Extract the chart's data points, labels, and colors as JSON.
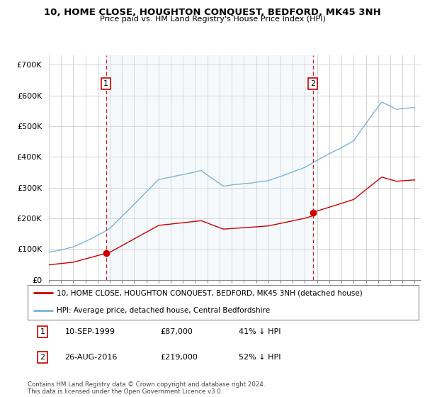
{
  "title": "10, HOME CLOSE, HOUGHTON CONQUEST, BEDFORD, MK45 3NH",
  "subtitle": "Price paid vs. HM Land Registry's House Price Index (HPI)",
  "ylabel_ticks": [
    "£0",
    "£100K",
    "£200K",
    "£300K",
    "£400K",
    "£500K",
    "£600K",
    "£700K"
  ],
  "ytick_values": [
    0,
    100000,
    200000,
    300000,
    400000,
    500000,
    600000,
    700000
  ],
  "ylim": [
    0,
    730000
  ],
  "xlim_start": 1995.0,
  "xlim_end": 2025.5,
  "sale1_x": 1999.69,
  "sale1_y": 87000,
  "sale1_label": "1",
  "sale2_x": 2016.65,
  "sale2_y": 219000,
  "sale2_label": "2",
  "legend_line1": "10, HOME CLOSE, HOUGHTON CONQUEST, BEDFORD, MK45 3NH (detached house)",
  "legend_line2": "HPI: Average price, detached house, Central Bedfordshire",
  "annotation1_date": "10-SEP-1999",
  "annotation1_price": "£87,000",
  "annotation1_hpi": "41% ↓ HPI",
  "annotation2_date": "26-AUG-2016",
  "annotation2_price": "£219,000",
  "annotation2_hpi": "52% ↓ HPI",
  "footer": "Contains HM Land Registry data © Crown copyright and database right 2024.\nThis data is licensed under the Open Government Licence v3.0.",
  "hpi_color": "#7ab4d8",
  "hpi_fill_color": "#d8eaf5",
  "sale_color": "#cc0000",
  "sale_dot_color": "#cc0000",
  "vline_color": "#cc0000",
  "grid_color": "#cccccc",
  "background_color": "#ffffff"
}
